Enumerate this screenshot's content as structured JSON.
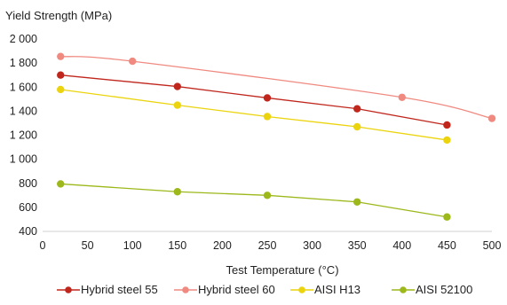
{
  "chart_data": {
    "type": "line",
    "title": "",
    "ylabel": "Yield Strength (MPa)",
    "xlabel": "Test Temperature (°C)",
    "xlim": [
      0,
      500
    ],
    "ylim": [
      400,
      2000
    ],
    "x_ticks": [
      0,
      50,
      100,
      150,
      200,
      250,
      300,
      350,
      400,
      450,
      500
    ],
    "x_tick_labels": [
      "0",
      "50",
      "100",
      "150",
      "200",
      "250",
      "300",
      "350",
      "400",
      "450",
      "500"
    ],
    "y_ticks": [
      400,
      600,
      800,
      1000,
      1200,
      1400,
      1600,
      1800,
      2000
    ],
    "y_tick_labels": [
      "400",
      "600",
      "800",
      "1 000",
      "1 200",
      "1 400",
      "1 600",
      "1 800",
      "2 000"
    ],
    "grid": false,
    "legend_position": "bottom",
    "series": [
      {
        "name": "Hybrid steel 55",
        "color": "#c0261c",
        "style": "straight",
        "x": [
          20,
          150,
          250,
          350,
          450
        ],
        "y": [
          1700,
          1605,
          1510,
          1420,
          1285
        ]
      },
      {
        "name": "Hybrid steel 60",
        "color": "#f08a80",
        "style": "smooth",
        "x": [
          20,
          100,
          400,
          500
        ],
        "y": [
          1855,
          1815,
          1515,
          1340
        ]
      },
      {
        "name": "AISI H13",
        "color": "#ebd40d",
        "style": "straight",
        "x": [
          20,
          150,
          250,
          350,
          450
        ],
        "y": [
          1580,
          1450,
          1355,
          1270,
          1160
        ]
      },
      {
        "name": "AISI 52100",
        "color": "#9cb81a",
        "style": "straight",
        "x": [
          20,
          150,
          250,
          350,
          450
        ],
        "y": [
          795,
          730,
          700,
          645,
          520
        ]
      }
    ]
  }
}
